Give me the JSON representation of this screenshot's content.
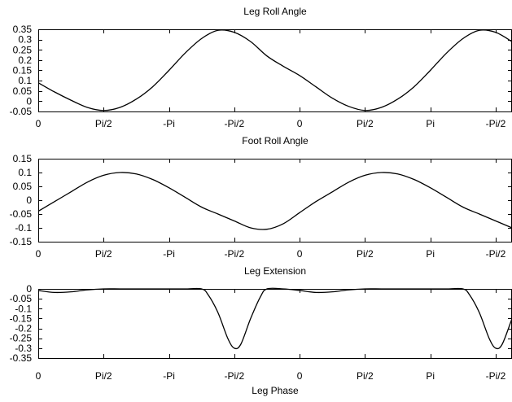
{
  "figure": {
    "xlabel": "Leg Phase"
  },
  "chart_data": [
    {
      "type": "line",
      "title": "Leg Roll Angle",
      "xlabel": "",
      "ylabel": "",
      "xlim": [
        0,
        7.25
      ],
      "ylim": [
        -0.05,
        0.35
      ],
      "grid": false,
      "x_ticks": [
        {
          "x": 0,
          "label": "0"
        },
        {
          "x": 1,
          "label": "Pi/2"
        },
        {
          "x": 2,
          "label": "-Pi"
        },
        {
          "x": 3,
          "label": "-Pi/2"
        },
        {
          "x": 4,
          "label": "0"
        },
        {
          "x": 5,
          "label": "Pi/2"
        },
        {
          "x": 6,
          "label": "Pi"
        },
        {
          "x": 7,
          "label": "-Pi/2"
        }
      ],
      "y_ticks": [
        {
          "y": 0.35,
          "label": "0.35"
        },
        {
          "y": 0.3,
          "label": "0.3"
        },
        {
          "y": 0.25,
          "label": "0.25"
        },
        {
          "y": 0.2,
          "label": "0.2"
        },
        {
          "y": 0.15,
          "label": "0.15"
        },
        {
          "y": 0.1,
          "label": "0.1"
        },
        {
          "y": 0.05,
          "label": "0.05"
        },
        {
          "y": 0.0,
          "label": "0"
        },
        {
          "y": -0.05,
          "label": "-0.05"
        }
      ],
      "series": [
        {
          "color": "#000000",
          "x": [
            0,
            0.25,
            0.5,
            0.75,
            1.0,
            1.25,
            1.5,
            1.75,
            2.0,
            2.25,
            2.5,
            2.75,
            3.0,
            3.25,
            3.5,
            3.75,
            4.0,
            4.25,
            4.5,
            4.75,
            5.0,
            5.25,
            5.5,
            5.75,
            6.0,
            6.25,
            6.5,
            6.75,
            7.0,
            7.25
          ],
          "y": [
            0.09,
            0.045,
            0.005,
            -0.03,
            -0.045,
            -0.03,
            0.01,
            0.07,
            0.15,
            0.235,
            0.305,
            0.345,
            0.335,
            0.29,
            0.22,
            0.17,
            0.125,
            0.07,
            0.015,
            -0.025,
            -0.045,
            -0.03,
            0.01,
            0.07,
            0.15,
            0.235,
            0.305,
            0.345,
            0.335,
            0.29
          ]
        }
      ]
    },
    {
      "type": "line",
      "title": "Foot Roll Angle",
      "xlabel": "",
      "ylabel": "",
      "xlim": [
        0,
        7.25
      ],
      "ylim": [
        -0.15,
        0.15
      ],
      "grid": false,
      "x_ticks": [
        {
          "x": 0,
          "label": "0"
        },
        {
          "x": 1,
          "label": "Pi/2"
        },
        {
          "x": 2,
          "label": "-Pi"
        },
        {
          "x": 3,
          "label": "-Pi/2"
        },
        {
          "x": 4,
          "label": "0"
        },
        {
          "x": 5,
          "label": "Pi/2"
        },
        {
          "x": 6,
          "label": "Pi"
        },
        {
          "x": 7,
          "label": "-Pi/2"
        }
      ],
      "y_ticks": [
        {
          "y": 0.15,
          "label": "0.15"
        },
        {
          "y": 0.1,
          "label": "0.1"
        },
        {
          "y": 0.05,
          "label": "0.05"
        },
        {
          "y": 0.0,
          "label": "0"
        },
        {
          "y": -0.05,
          "label": "-0.05"
        },
        {
          "y": -0.1,
          "label": "-0.1"
        },
        {
          "y": -0.15,
          "label": "-0.15"
        }
      ],
      "series": [
        {
          "color": "#000000",
          "x": [
            0,
            0.25,
            0.5,
            0.75,
            1.0,
            1.25,
            1.5,
            1.75,
            2.0,
            2.25,
            2.5,
            2.75,
            3.0,
            3.25,
            3.5,
            3.75,
            4.0,
            4.25,
            4.5,
            4.75,
            5.0,
            5.25,
            5.5,
            5.75,
            6.0,
            6.25,
            6.5,
            6.75,
            7.0,
            7.25
          ],
          "y": [
            -0.04,
            -0.005,
            0.03,
            0.065,
            0.09,
            0.1,
            0.095,
            0.075,
            0.045,
            0.01,
            -0.025,
            -0.05,
            -0.075,
            -0.1,
            -0.105,
            -0.085,
            -0.045,
            -0.005,
            0.03,
            0.065,
            0.09,
            0.1,
            0.095,
            0.075,
            0.045,
            0.01,
            -0.025,
            -0.05,
            -0.075,
            -0.1
          ]
        }
      ]
    },
    {
      "type": "line",
      "title": "Leg Extension",
      "xlabel": "Leg Phase",
      "ylabel": "",
      "xlim": [
        0,
        7.25
      ],
      "ylim": [
        -0.35,
        0.0
      ],
      "grid": false,
      "x_ticks": [
        {
          "x": 0,
          "label": "0"
        },
        {
          "x": 1,
          "label": "Pi/2"
        },
        {
          "x": 2,
          "label": "-Pi"
        },
        {
          "x": 3,
          "label": "-Pi/2"
        },
        {
          "x": 4,
          "label": "0"
        },
        {
          "x": 5,
          "label": "Pi/2"
        },
        {
          "x": 6,
          "label": "Pi"
        },
        {
          "x": 7,
          "label": "-Pi/2"
        }
      ],
      "y_ticks": [
        {
          "y": 0.0,
          "label": "0"
        },
        {
          "y": -0.05,
          "label": "-0.05"
        },
        {
          "y": -0.1,
          "label": "-0.1"
        },
        {
          "y": -0.15,
          "label": "-0.15"
        },
        {
          "y": -0.2,
          "label": "-0.2"
        },
        {
          "y": -0.25,
          "label": "-0.25"
        },
        {
          "y": -0.3,
          "label": "-0.3"
        },
        {
          "y": -0.35,
          "label": "-0.35"
        }
      ],
      "series": [
        {
          "color": "#000000",
          "x": [
            0,
            0.25,
            0.5,
            0.75,
            1.0,
            1.25,
            1.5,
            1.75,
            2.0,
            2.25,
            2.5,
            2.6,
            2.75,
            2.9,
            3.0,
            3.1,
            3.25,
            3.4,
            3.5,
            3.75,
            4.0,
            4.25,
            4.5,
            4.75,
            5.0,
            5.25,
            5.5,
            5.75,
            6.0,
            6.25,
            6.5,
            6.6,
            6.75,
            6.9,
            7.0,
            7.1,
            7.25
          ],
          "y": [
            -0.008,
            -0.018,
            -0.015,
            -0.005,
            0.0,
            0.0,
            0.0,
            0.0,
            0.0,
            0.0,
            0.0,
            -0.03,
            -0.12,
            -0.25,
            -0.3,
            -0.28,
            -0.15,
            -0.04,
            0.0,
            0.0,
            -0.008,
            -0.018,
            -0.015,
            -0.005,
            0.0,
            0.0,
            0.0,
            0.0,
            0.0,
            0.0,
            0.0,
            -0.03,
            -0.12,
            -0.25,
            -0.3,
            -0.28,
            -0.15
          ]
        }
      ]
    }
  ]
}
